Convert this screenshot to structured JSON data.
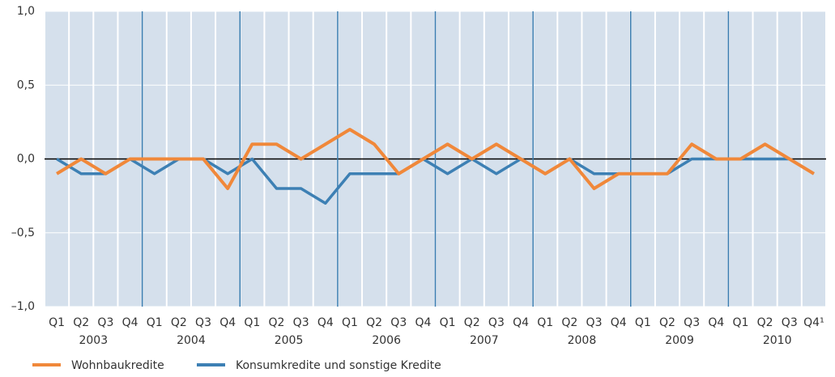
{
  "chart_data": {
    "type": "line",
    "categories": [
      "Q1",
      "Q2",
      "Q3",
      "Q4",
      "Q1",
      "Q2",
      "Q3",
      "Q4",
      "Q1",
      "Q2",
      "Q3",
      "Q4",
      "Q1",
      "Q2",
      "Q3",
      "Q4",
      "Q1",
      "Q2",
      "Q3",
      "Q4",
      "Q1",
      "Q2",
      "Q3",
      "Q4",
      "Q1",
      "Q2",
      "Q3",
      "Q4",
      "Q1",
      "Q2",
      "Q3",
      "Q4¹"
    ],
    "years": [
      "2003",
      "2004",
      "2005",
      "2006",
      "2007",
      "2008",
      "2009",
      "2010"
    ],
    "series": [
      {
        "name": "Wohnbaukredite",
        "color": "#f0883a",
        "values": [
          -0.1,
          0.0,
          -0.1,
          0.0,
          0.0,
          0.0,
          0.0,
          -0.2,
          0.1,
          0.1,
          0.0,
          0.1,
          0.2,
          0.1,
          -0.1,
          0.0,
          0.1,
          0.0,
          0.1,
          0.0,
          -0.1,
          0.0,
          -0.2,
          -0.1,
          -0.1,
          -0.1,
          0.1,
          0.0,
          0.0,
          0.1,
          0.0,
          -0.1
        ]
      },
      {
        "name": "Konsumkredite und sonstige Kredite",
        "color": "#3d80b4",
        "values": [
          0.0,
          -0.1,
          -0.1,
          0.0,
          -0.1,
          0.0,
          0.0,
          -0.1,
          0.0,
          -0.2,
          -0.2,
          -0.3,
          -0.1,
          -0.1,
          -0.1,
          0.0,
          -0.1,
          0.0,
          -0.1,
          0.0,
          -0.1,
          0.0,
          -0.1,
          -0.1,
          -0.1,
          -0.1,
          0.0,
          0.0,
          0.0,
          0.0,
          0.0,
          -0.1
        ]
      }
    ],
    "ylim": [
      -1.0,
      1.0
    ],
    "yticks": [
      {
        "value": -1.0,
        "label": "–1,0"
      },
      {
        "value": -0.5,
        "label": "–0,5"
      },
      {
        "value": 0,
        "label": "0,0"
      },
      {
        "value": 0.5,
        "label": "0,5"
      },
      {
        "value": 1.0,
        "label": "1,0"
      }
    ],
    "legend": "bottom-left"
  }
}
